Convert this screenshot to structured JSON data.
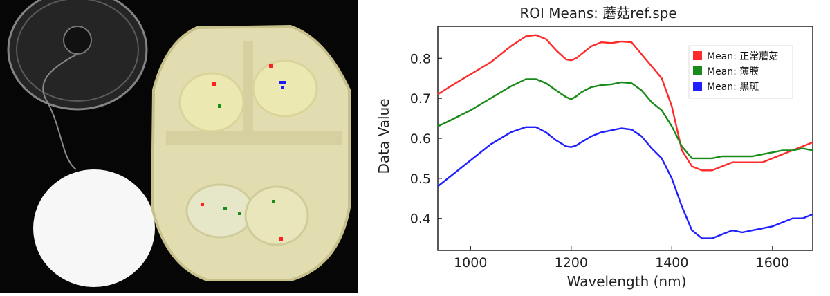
{
  "photo": {
    "description_icon": "hyperspectral-sample-photo",
    "roi_marker_colors": [
      "#ff2020",
      "#1a8c1a",
      "#1a1aff"
    ]
  },
  "colors": {
    "red": "#ff2a2a",
    "green": "#1a8a1a",
    "blue": "#1f1fff"
  },
  "chart_data": {
    "type": "line",
    "title": "ROI Means: 蘑菇ref.spe",
    "xlabel": "Wavelength (nm)",
    "ylabel": "Data Value",
    "xlim": [
      935,
      1680
    ],
    "ylim": [
      0.32,
      0.88
    ],
    "xticks": [
      1000,
      1200,
      1400,
      1600
    ],
    "yticks": [
      0.4,
      0.5,
      0.6,
      0.7,
      0.8
    ],
    "xtick_labels": [
      "1000",
      "1200",
      "1400",
      "1600"
    ],
    "ytick_labels": [
      "0.4",
      "0.5",
      "0.6",
      "0.7",
      "0.8"
    ],
    "grid": false,
    "legend_position": "top-right",
    "series": [
      {
        "name": "Mean: 正常蘑菇",
        "color": "#ff2a2a",
        "x": [
          935,
          960,
          1000,
          1040,
          1080,
          1110,
          1130,
          1150,
          1170,
          1190,
          1200,
          1210,
          1220,
          1240,
          1260,
          1280,
          1300,
          1320,
          1340,
          1360,
          1380,
          1400,
          1420,
          1440,
          1460,
          1480,
          1500,
          1520,
          1540,
          1560,
          1580,
          1600,
          1620,
          1640,
          1660,
          1680
        ],
        "values": [
          0.71,
          0.73,
          0.76,
          0.79,
          0.83,
          0.855,
          0.858,
          0.848,
          0.82,
          0.797,
          0.795,
          0.8,
          0.81,
          0.83,
          0.84,
          0.838,
          0.842,
          0.84,
          0.81,
          0.78,
          0.75,
          0.68,
          0.57,
          0.53,
          0.52,
          0.52,
          0.53,
          0.54,
          0.54,
          0.54,
          0.54,
          0.55,
          0.56,
          0.57,
          0.58,
          0.59
        ]
      },
      {
        "name": "Mean: 薄膜",
        "color": "#1a8a1a",
        "x": [
          935,
          960,
          1000,
          1040,
          1080,
          1110,
          1130,
          1150,
          1170,
          1190,
          1200,
          1210,
          1220,
          1240,
          1260,
          1280,
          1300,
          1320,
          1340,
          1360,
          1380,
          1400,
          1420,
          1440,
          1460,
          1480,
          1500,
          1520,
          1540,
          1560,
          1580,
          1600,
          1620,
          1640,
          1660,
          1680
        ],
        "values": [
          0.63,
          0.645,
          0.67,
          0.7,
          0.73,
          0.748,
          0.748,
          0.738,
          0.72,
          0.703,
          0.698,
          0.705,
          0.715,
          0.728,
          0.733,
          0.735,
          0.74,
          0.738,
          0.72,
          0.69,
          0.67,
          0.63,
          0.58,
          0.55,
          0.55,
          0.55,
          0.555,
          0.555,
          0.555,
          0.555,
          0.56,
          0.565,
          0.57,
          0.57,
          0.575,
          0.57
        ]
      },
      {
        "name": "Mean: 黑斑",
        "color": "#1f1fff",
        "x": [
          935,
          960,
          1000,
          1040,
          1080,
          1110,
          1130,
          1150,
          1170,
          1190,
          1200,
          1210,
          1220,
          1240,
          1260,
          1280,
          1300,
          1320,
          1340,
          1360,
          1380,
          1400,
          1420,
          1440,
          1460,
          1480,
          1500,
          1520,
          1540,
          1560,
          1580,
          1600,
          1620,
          1640,
          1660,
          1680
        ],
        "values": [
          0.48,
          0.505,
          0.545,
          0.585,
          0.615,
          0.628,
          0.628,
          0.615,
          0.595,
          0.58,
          0.578,
          0.582,
          0.59,
          0.605,
          0.615,
          0.62,
          0.625,
          0.622,
          0.605,
          0.575,
          0.55,
          0.5,
          0.43,
          0.37,
          0.35,
          0.35,
          0.36,
          0.37,
          0.365,
          0.37,
          0.375,
          0.38,
          0.39,
          0.4,
          0.4,
          0.41
        ]
      }
    ]
  }
}
